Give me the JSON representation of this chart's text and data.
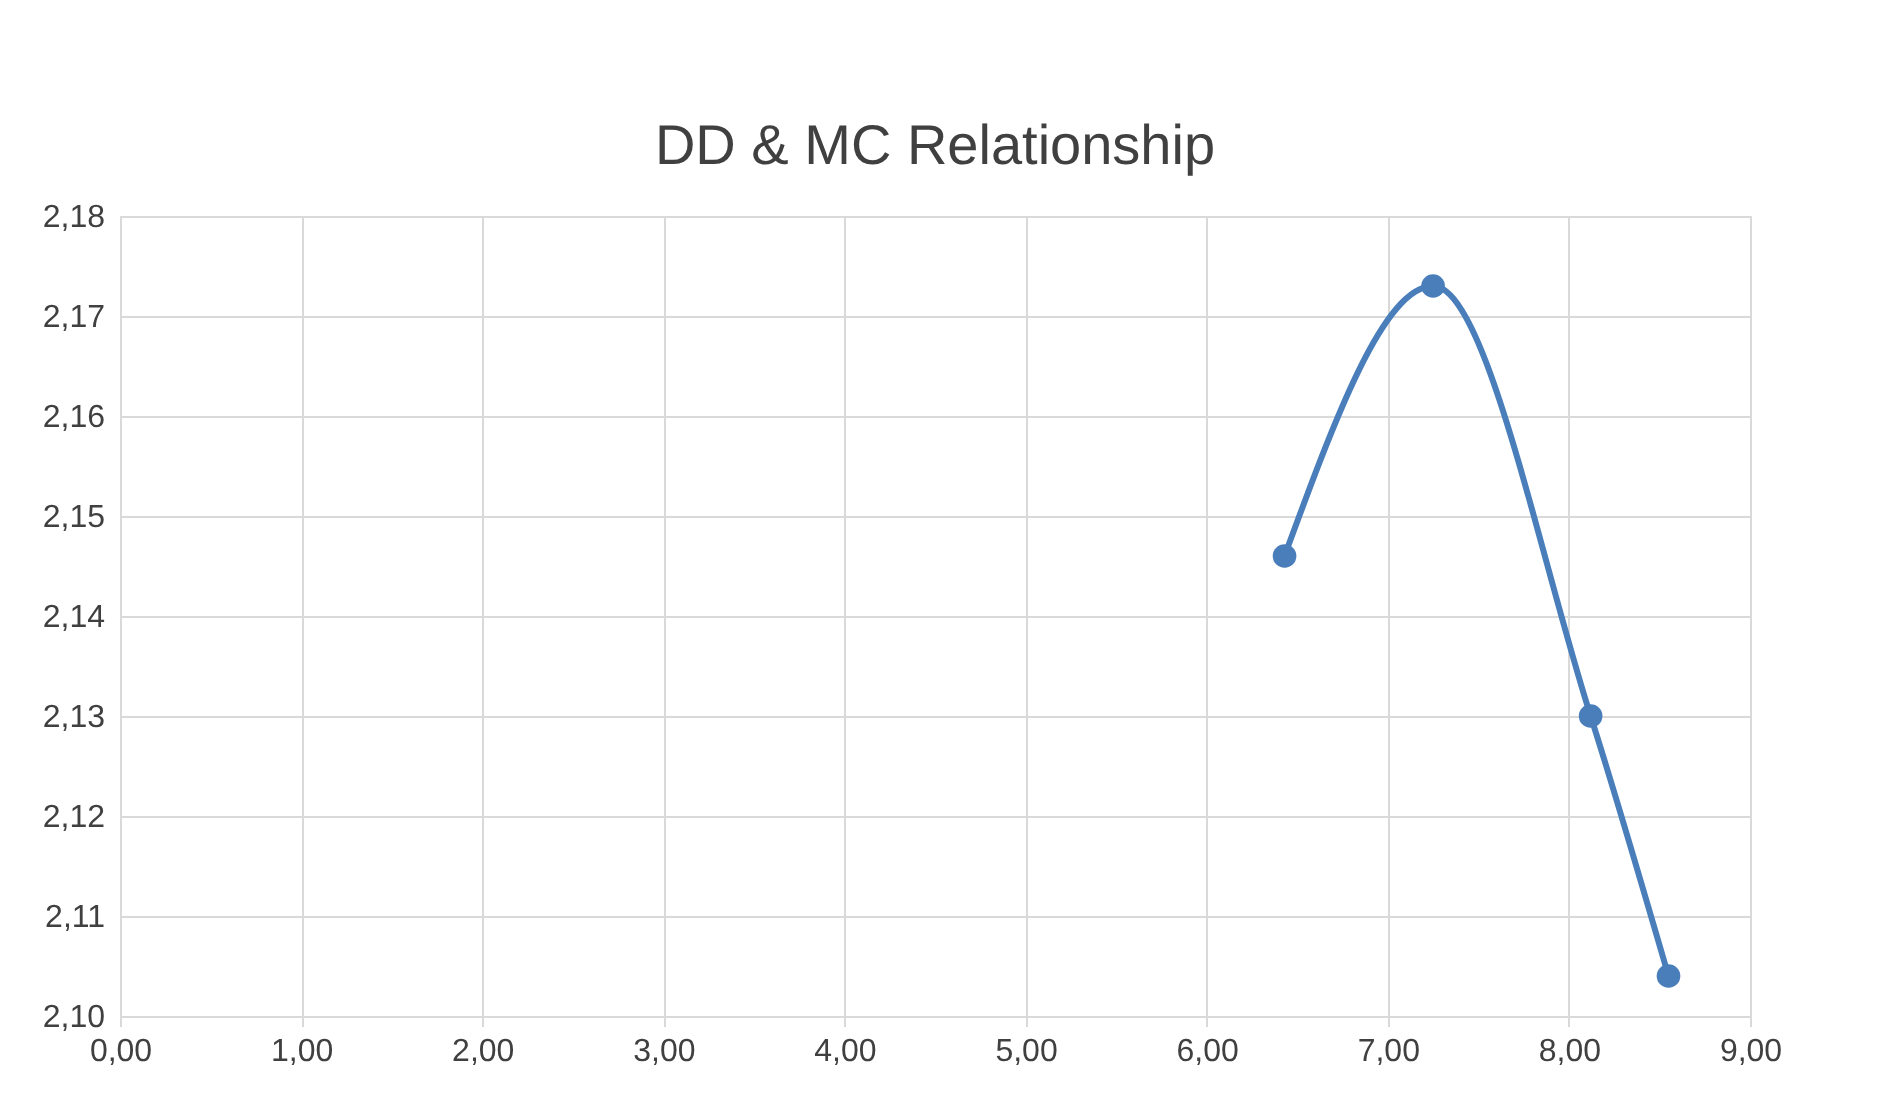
{
  "chart_data": {
    "type": "line",
    "title": "DD & MC Relationship",
    "x": [
      6.43,
      7.25,
      8.12,
      8.55
    ],
    "series": [
      {
        "color": "#4a7ebb",
        "values": [
          2.146,
          2.173,
          2.13,
          2.104
        ]
      }
    ],
    "xlim": [
      0,
      9
    ],
    "ylim": [
      2.1,
      2.18
    ],
    "xticks": [
      {
        "value": 0,
        "label": "0,00"
      },
      {
        "value": 1,
        "label": "1,00"
      },
      {
        "value": 2,
        "label": "2,00"
      },
      {
        "value": 3,
        "label": "3,00"
      },
      {
        "value": 4,
        "label": "4,00"
      },
      {
        "value": 5,
        "label": "5,00"
      },
      {
        "value": 6,
        "label": "6,00"
      },
      {
        "value": 7,
        "label": "7,00"
      },
      {
        "value": 8,
        "label": "8,00"
      },
      {
        "value": 9,
        "label": "9,00"
      }
    ],
    "yticks": [
      {
        "value": 2.1,
        "label": "2,10"
      },
      {
        "value": 2.11,
        "label": "2,11"
      },
      {
        "value": 2.12,
        "label": "2,12"
      },
      {
        "value": 2.13,
        "label": "2,13"
      },
      {
        "value": 2.14,
        "label": "2,14"
      },
      {
        "value": 2.15,
        "label": "2,15"
      },
      {
        "value": 2.16,
        "label": "2,16"
      },
      {
        "value": 2.17,
        "label": "2,17"
      },
      {
        "value": 2.18,
        "label": "2,18"
      }
    ],
    "grid": true,
    "marker": "circle",
    "line_style": "solid"
  }
}
